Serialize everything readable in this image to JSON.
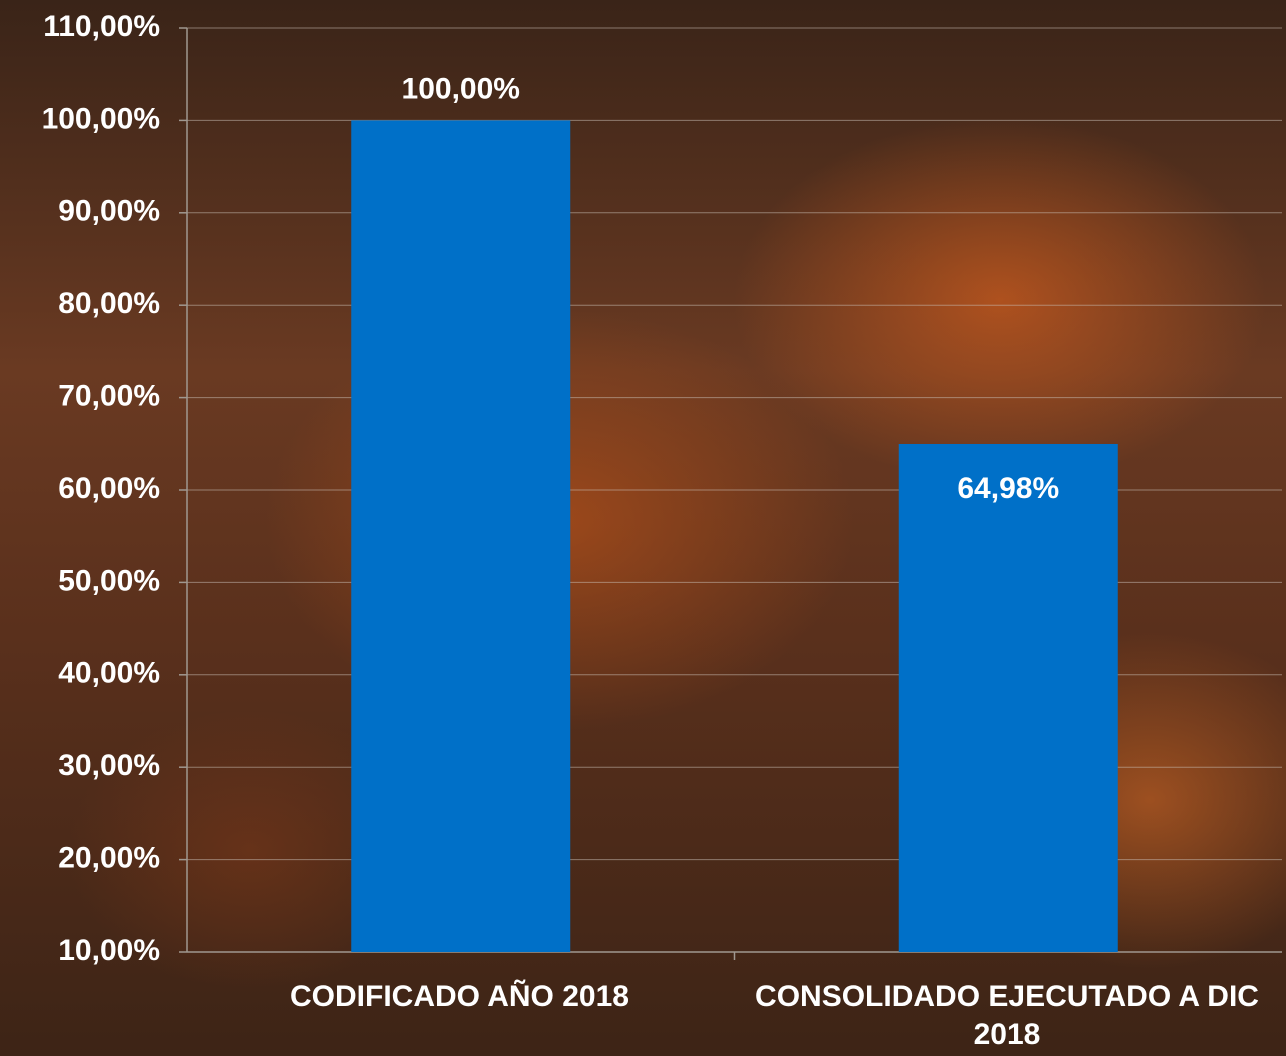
{
  "chart_data": {
    "type": "bar",
    "categories": [
      "CODIFICADO AÑO 2018",
      "CONSOLIDADO EJECUTADO A DIC 2018"
    ],
    "values": [
      100,
      64.98
    ],
    "value_labels": [
      "100,00%",
      "64,98%"
    ],
    "color": "#0070c8",
    "ylim": [
      10,
      110
    ],
    "yticks": [
      {
        "value": 10,
        "label": "10,00%"
      },
      {
        "value": 20,
        "label": "20,00%"
      },
      {
        "value": 30,
        "label": "30,00%"
      },
      {
        "value": 40,
        "label": "40,00%"
      },
      {
        "value": 50,
        "label": "50,00%"
      },
      {
        "value": 60,
        "label": "60,00%"
      },
      {
        "value": 70,
        "label": "70,00%"
      },
      {
        "value": 80,
        "label": "80,00%"
      },
      {
        "value": 90,
        "label": "90,00%"
      },
      {
        "value": 100,
        "label": "100,00%"
      },
      {
        "value": 110,
        "label": "110,00%"
      }
    ],
    "grid": true
  }
}
